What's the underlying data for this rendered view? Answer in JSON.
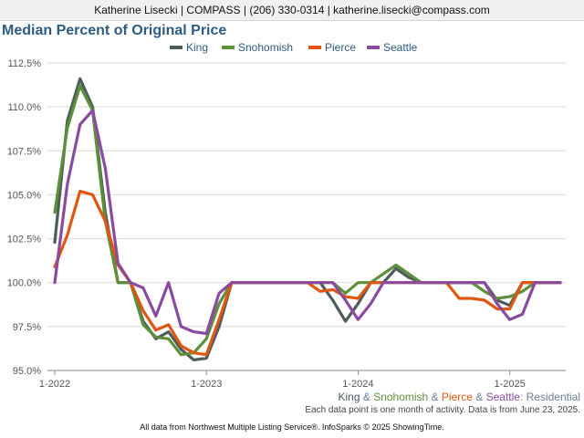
{
  "header": {
    "contact": "Katherine Lisecki | COMPASS | (206) 330-0314 | katherine.lisecki@compass.com"
  },
  "chart_data": {
    "type": "line",
    "title": "Median Percent of Original Price",
    "x": [
      "2022-01",
      "2022-02",
      "2022-03",
      "2022-04",
      "2022-05",
      "2022-06",
      "2022-07",
      "2022-08",
      "2022-09",
      "2022-10",
      "2022-11",
      "2022-12",
      "2023-01",
      "2023-02",
      "2023-03",
      "2023-04",
      "2023-05",
      "2023-06",
      "2023-07",
      "2023-08",
      "2023-09",
      "2023-10",
      "2023-11",
      "2023-12",
      "2024-01",
      "2024-02",
      "2024-03",
      "2024-04",
      "2024-05",
      "2024-06",
      "2024-07",
      "2024-08",
      "2024-09",
      "2024-10",
      "2024-11",
      "2024-12",
      "2025-01",
      "2025-02",
      "2025-03",
      "2025-04",
      "2025-05"
    ],
    "x_tick_labels": [
      "1-2022",
      "1-2023",
      "1-2024",
      "1-2025"
    ],
    "x_tick_positions": [
      "2022-01",
      "2023-01",
      "2024-01",
      "2025-01"
    ],
    "y_ticks": [
      "95.0%",
      "97.5%",
      "100.0%",
      "102.5%",
      "105.0%",
      "107.5%",
      "110.0%",
      "112.5%"
    ],
    "ylim": [
      95.0,
      112.5
    ],
    "grid": true,
    "legend_position": "top",
    "series": [
      {
        "name": "King",
        "color": "#4d5b5a",
        "values": [
          102.3,
          109.2,
          111.6,
          110.0,
          104.0,
          100.0,
          100.0,
          97.8,
          96.8,
          97.2,
          96.2,
          95.6,
          95.7,
          97.5,
          100.0,
          100.0,
          100.0,
          100.0,
          100.0,
          100.0,
          100.0,
          100.0,
          99.0,
          97.8,
          98.8,
          100.0,
          100.0,
          100.8,
          100.3,
          100.0,
          100.0,
          100.0,
          100.0,
          100.0,
          100.0,
          99.0,
          98.7,
          100.0,
          100.0,
          100.0,
          100.0
        ]
      },
      {
        "name": "Snohomish",
        "color": "#5d8e3a",
        "values": [
          104.0,
          108.8,
          111.2,
          109.8,
          103.5,
          100.0,
          100.0,
          97.6,
          96.9,
          96.8,
          95.9,
          96.0,
          96.8,
          98.8,
          100.0,
          100.0,
          100.0,
          100.0,
          100.0,
          100.0,
          100.0,
          100.0,
          100.0,
          99.4,
          100.0,
          100.0,
          100.5,
          101.0,
          100.5,
          100.0,
          100.0,
          100.0,
          100.0,
          100.0,
          99.5,
          99.1,
          99.2,
          99.5,
          100.0,
          100.0,
          100.0
        ]
      },
      {
        "name": "Pierce",
        "color": "#e0560f",
        "values": [
          100.9,
          102.7,
          105.2,
          105.0,
          103.5,
          101.0,
          100.0,
          98.4,
          97.3,
          97.6,
          96.4,
          96.0,
          95.9,
          97.9,
          100.0,
          100.0,
          100.0,
          100.0,
          100.0,
          100.0,
          100.0,
          99.5,
          99.6,
          99.2,
          99.1,
          100.0,
          100.0,
          100.0,
          100.0,
          100.0,
          100.0,
          100.0,
          99.1,
          99.1,
          99.0,
          98.5,
          98.5,
          100.0,
          100.0,
          100.0,
          100.0
        ]
      },
      {
        "name": "Seattle",
        "color": "#8a4aa0",
        "values": [
          100.0,
          105.6,
          109.0,
          109.8,
          106.5,
          101.1,
          100.0,
          99.7,
          98.1,
          100.0,
          97.5,
          97.2,
          97.1,
          99.4,
          100.0,
          100.0,
          100.0,
          100.0,
          100.0,
          100.0,
          100.0,
          100.0,
          100.0,
          99.0,
          97.9,
          98.8,
          100.0,
          100.0,
          100.0,
          100.0,
          100.0,
          100.0,
          100.0,
          100.0,
          100.0,
          98.8,
          97.9,
          98.2,
          100.0,
          100.0,
          100.0
        ]
      }
    ],
    "series_caption": {
      "names": [
        "King",
        "Snohomish",
        "Pierce",
        "Seattle"
      ],
      "separator": " & ",
      "suffix": ": Residential"
    },
    "footnote": "Each data point is one month of activity. Data is from June 23, 2025.",
    "source": "All data from Northwest Multiple Listing Service®. InfoSparks © 2025 ShowingTime."
  }
}
